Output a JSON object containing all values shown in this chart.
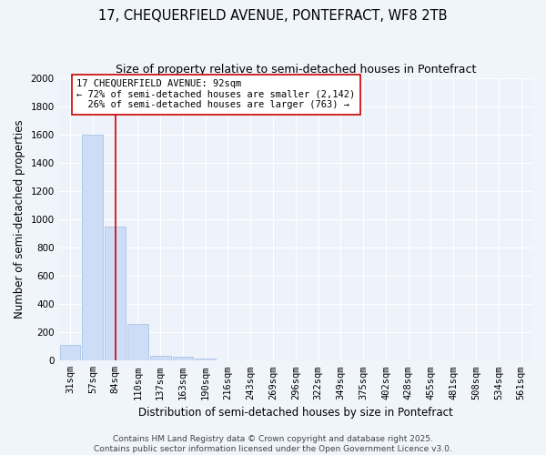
{
  "title": "17, CHEQUERFIELD AVENUE, PONTEFRACT, WF8 2TB",
  "subtitle": "Size of property relative to semi-detached houses in Pontefract",
  "xlabel": "Distribution of semi-detached houses by size in Pontefract",
  "ylabel": "Number of semi-detached properties",
  "bar_labels": [
    "31sqm",
    "57sqm",
    "84sqm",
    "110sqm",
    "137sqm",
    "163sqm",
    "190sqm",
    "216sqm",
    "243sqm",
    "269sqm",
    "296sqm",
    "322sqm",
    "349sqm",
    "375sqm",
    "402sqm",
    "428sqm",
    "455sqm",
    "481sqm",
    "508sqm",
    "534sqm",
    "561sqm"
  ],
  "bar_values": [
    110,
    1600,
    950,
    260,
    35,
    30,
    15,
    0,
    0,
    0,
    0,
    0,
    0,
    0,
    0,
    0,
    0,
    0,
    0,
    0,
    0
  ],
  "bar_color": "#ccddf5",
  "bar_edge_color": "#aac4e8",
  "vline_x": 2.0,
  "vline_color": "#cc0000",
  "annotation_text": "17 CHEQUERFIELD AVENUE: 92sqm\n← 72% of semi-detached houses are smaller (2,142)\n  26% of semi-detached houses are larger (763) →",
  "annotation_box_color": "#ffffff",
  "annotation_box_edge": "#cc0000",
  "ylim": [
    0,
    2000
  ],
  "yticks": [
    0,
    200,
    400,
    600,
    800,
    1000,
    1200,
    1400,
    1600,
    1800,
    2000
  ],
  "bg_color": "#f0f4fb",
  "plot_bg_color": "#eef3fb",
  "footer_text": "Contains HM Land Registry data © Crown copyright and database right 2025.\nContains public sector information licensed under the Open Government Licence v3.0.",
  "title_fontsize": 10.5,
  "subtitle_fontsize": 9,
  "axis_label_fontsize": 8.5,
  "tick_fontsize": 7.5,
  "annotation_fontsize": 7.5,
  "footer_fontsize": 6.5,
  "grid_color": "#ffffff"
}
